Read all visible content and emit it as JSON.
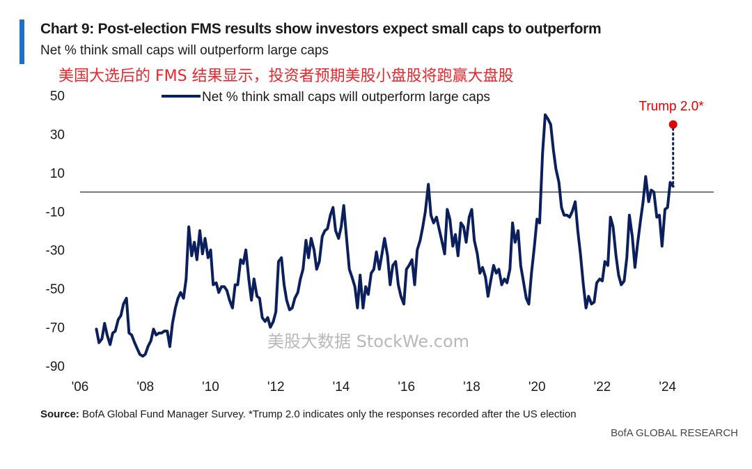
{
  "header": {
    "title": "Chart 9: Post-election FMS results show investors expect small caps to outperform",
    "subtitle": "Net % think small caps will outperform large caps",
    "cn_title": "美国大选后的 FMS 结果显示，投资者预期美股小盘股将跑赢大盘股"
  },
  "watermark": "美股大数据 StockWe.com",
  "footer": {
    "source_prefix": "Source:",
    "source_text": " BofA Global Fund Manager Survey. *Trump 2.0 indicates only the responses recorded after the US election",
    "brand": "BofA GLOBAL RESEARCH"
  },
  "colors": {
    "series": "#0b1f5c",
    "annotation": "#e00000",
    "accent_bar": "#1f6fc5",
    "zero_line": "#1a1a1a"
  },
  "chart_data": {
    "type": "line",
    "title": "Net % think small caps will outperform large caps",
    "xlabel": "",
    "ylabel": "",
    "xlim": [
      2006.0,
      2025.2
    ],
    "ylim": [
      -90,
      50
    ],
    "yticks": [
      50,
      30,
      10,
      -10,
      -30,
      -50,
      -70,
      -90
    ],
    "xticks": [
      {
        "value": 2006,
        "label": "'06"
      },
      {
        "value": 2008,
        "label": "'08"
      },
      {
        "value": 2010,
        "label": "'10"
      },
      {
        "value": 2012,
        "label": "'12"
      },
      {
        "value": 2014,
        "label": "'14"
      },
      {
        "value": 2016,
        "label": "'16"
      },
      {
        "value": 2018,
        "label": "'18"
      },
      {
        "value": 2020,
        "label": "'20"
      },
      {
        "value": 2022,
        "label": "'22"
      },
      {
        "value": 2024,
        "label": "'24"
      }
    ],
    "reference_line": 0,
    "legend_position": "top-center",
    "grid": false,
    "series": [
      {
        "name": "Net % think small caps will outperform large caps",
        "points": [
          [
            2006.5,
            -71
          ],
          [
            2006.58,
            -78
          ],
          [
            2006.67,
            -76
          ],
          [
            2006.75,
            -68
          ],
          [
            2006.83,
            -74
          ],
          [
            2006.92,
            -79
          ],
          [
            2007.0,
            -73
          ],
          [
            2007.08,
            -72
          ],
          [
            2007.17,
            -66
          ],
          [
            2007.25,
            -64
          ],
          [
            2007.33,
            -58
          ],
          [
            2007.42,
            -55
          ],
          [
            2007.5,
            -73
          ],
          [
            2007.58,
            -74
          ],
          [
            2007.67,
            -78
          ],
          [
            2007.75,
            -81
          ],
          [
            2007.83,
            -84
          ],
          [
            2007.92,
            -85
          ],
          [
            2008.0,
            -84
          ],
          [
            2008.08,
            -80
          ],
          [
            2008.17,
            -77
          ],
          [
            2008.25,
            -71
          ],
          [
            2008.33,
            -74
          ],
          [
            2008.42,
            -73
          ],
          [
            2008.5,
            -73
          ],
          [
            2008.58,
            -72
          ],
          [
            2008.67,
            -72
          ],
          [
            2008.75,
            -80
          ],
          [
            2008.83,
            -68
          ],
          [
            2008.92,
            -60
          ],
          [
            2009.0,
            -55
          ],
          [
            2009.08,
            -52
          ],
          [
            2009.17,
            -55
          ],
          [
            2009.25,
            -45
          ],
          [
            2009.33,
            -18
          ],
          [
            2009.42,
            -33
          ],
          [
            2009.5,
            -26
          ],
          [
            2009.58,
            -35
          ],
          [
            2009.67,
            -20
          ],
          [
            2009.75,
            -32
          ],
          [
            2009.83,
            -24
          ],
          [
            2009.92,
            -34
          ],
          [
            2010.0,
            -30
          ],
          [
            2010.08,
            -48
          ],
          [
            2010.17,
            -47
          ],
          [
            2010.25,
            -52
          ],
          [
            2010.33,
            -49
          ],
          [
            2010.42,
            -49
          ],
          [
            2010.5,
            -51
          ],
          [
            2010.58,
            -56
          ],
          [
            2010.67,
            -60
          ],
          [
            2010.75,
            -48
          ],
          [
            2010.83,
            -48
          ],
          [
            2010.92,
            -35
          ],
          [
            2011.0,
            -37
          ],
          [
            2011.08,
            -30
          ],
          [
            2011.17,
            -45
          ],
          [
            2011.25,
            -56
          ],
          [
            2011.33,
            -45
          ],
          [
            2011.42,
            -54
          ],
          [
            2011.5,
            -55
          ],
          [
            2011.58,
            -65
          ],
          [
            2011.67,
            -67
          ],
          [
            2011.75,
            -65
          ],
          [
            2011.83,
            -70
          ],
          [
            2011.92,
            -67
          ],
          [
            2012.0,
            -62
          ],
          [
            2012.08,
            -36
          ],
          [
            2012.17,
            -34
          ],
          [
            2012.25,
            -48
          ],
          [
            2012.33,
            -56
          ],
          [
            2012.42,
            -61
          ],
          [
            2012.5,
            -60
          ],
          [
            2012.58,
            -55
          ],
          [
            2012.67,
            -52
          ],
          [
            2012.75,
            -45
          ],
          [
            2012.83,
            -40
          ],
          [
            2012.92,
            -25
          ],
          [
            2013.0,
            -34
          ],
          [
            2013.08,
            -24
          ],
          [
            2013.17,
            -30
          ],
          [
            2013.25,
            -40
          ],
          [
            2013.33,
            -36
          ],
          [
            2013.42,
            -23
          ],
          [
            2013.5,
            -20
          ],
          [
            2013.58,
            -19
          ],
          [
            2013.67,
            -12
          ],
          [
            2013.75,
            -8
          ],
          [
            2013.83,
            -20
          ],
          [
            2013.92,
            -24
          ],
          [
            2014.0,
            -18
          ],
          [
            2014.08,
            -7
          ],
          [
            2014.17,
            -25
          ],
          [
            2014.25,
            -40
          ],
          [
            2014.33,
            -44
          ],
          [
            2014.42,
            -49
          ],
          [
            2014.5,
            -60
          ],
          [
            2014.58,
            -43
          ],
          [
            2014.67,
            -60
          ],
          [
            2014.75,
            -49
          ],
          [
            2014.83,
            -53
          ],
          [
            2014.92,
            -42
          ],
          [
            2015.0,
            -40
          ],
          [
            2015.08,
            -31
          ],
          [
            2015.17,
            -40
          ],
          [
            2015.25,
            -32
          ],
          [
            2015.33,
            -24
          ],
          [
            2015.42,
            -33
          ],
          [
            2015.5,
            -48
          ],
          [
            2015.58,
            -38
          ],
          [
            2015.67,
            -36
          ],
          [
            2015.75,
            -48
          ],
          [
            2015.83,
            -54
          ],
          [
            2015.92,
            -58
          ],
          [
            2016.0,
            -40
          ],
          [
            2016.08,
            -38
          ],
          [
            2016.17,
            -35
          ],
          [
            2016.25,
            -48
          ],
          [
            2016.33,
            -30
          ],
          [
            2016.42,
            -25
          ],
          [
            2016.5,
            -18
          ],
          [
            2016.58,
            -10
          ],
          [
            2016.67,
            4
          ],
          [
            2016.75,
            -12
          ],
          [
            2016.83,
            -16
          ],
          [
            2016.92,
            -13
          ],
          [
            2017.0,
            -19
          ],
          [
            2017.08,
            -25
          ],
          [
            2017.17,
            -32
          ],
          [
            2017.25,
            -9
          ],
          [
            2017.33,
            -14
          ],
          [
            2017.42,
            -28
          ],
          [
            2017.5,
            -22
          ],
          [
            2017.58,
            -33
          ],
          [
            2017.67,
            -16
          ],
          [
            2017.75,
            -18
          ],
          [
            2017.83,
            -26
          ],
          [
            2017.92,
            -13
          ],
          [
            2018.0,
            -9
          ],
          [
            2018.08,
            -25
          ],
          [
            2018.17,
            -32
          ],
          [
            2018.25,
            -42
          ],
          [
            2018.33,
            -39
          ],
          [
            2018.42,
            -44
          ],
          [
            2018.5,
            -54
          ],
          [
            2018.58,
            -46
          ],
          [
            2018.67,
            -38
          ],
          [
            2018.75,
            -42
          ],
          [
            2018.83,
            -40
          ],
          [
            2018.92,
            -48
          ],
          [
            2019.0,
            -45
          ],
          [
            2019.08,
            -47
          ],
          [
            2019.17,
            -40
          ],
          [
            2019.25,
            -16
          ],
          [
            2019.33,
            -26
          ],
          [
            2019.42,
            -20
          ],
          [
            2019.5,
            -38
          ],
          [
            2019.58,
            -46
          ],
          [
            2019.67,
            -55
          ],
          [
            2019.75,
            -58
          ],
          [
            2019.83,
            -42
          ],
          [
            2019.92,
            -28
          ],
          [
            2020.0,
            -14
          ],
          [
            2020.08,
            -16
          ],
          [
            2020.17,
            20
          ],
          [
            2020.25,
            40
          ],
          [
            2020.33,
            38
          ],
          [
            2020.42,
            35
          ],
          [
            2020.5,
            22
          ],
          [
            2020.58,
            12
          ],
          [
            2020.67,
            5
          ],
          [
            2020.75,
            -8
          ],
          [
            2020.83,
            -12
          ],
          [
            2020.92,
            -12
          ],
          [
            2021.0,
            -13
          ],
          [
            2021.08,
            -10
          ],
          [
            2021.17,
            -5
          ],
          [
            2021.25,
            -20
          ],
          [
            2021.33,
            -32
          ],
          [
            2021.42,
            -48
          ],
          [
            2021.5,
            -60
          ],
          [
            2021.58,
            -54
          ],
          [
            2021.67,
            -58
          ],
          [
            2021.75,
            -57
          ],
          [
            2021.83,
            -47
          ],
          [
            2021.92,
            -45
          ],
          [
            2022.0,
            -46
          ],
          [
            2022.08,
            -36
          ],
          [
            2022.17,
            -38
          ],
          [
            2022.25,
            -13
          ],
          [
            2022.33,
            -18
          ],
          [
            2022.42,
            -33
          ],
          [
            2022.5,
            -43
          ],
          [
            2022.58,
            -48
          ],
          [
            2022.67,
            -46
          ],
          [
            2022.75,
            -34
          ],
          [
            2022.83,
            -12
          ],
          [
            2022.92,
            -23
          ],
          [
            2023.0,
            -39
          ],
          [
            2023.08,
            -27
          ],
          [
            2023.17,
            -15
          ],
          [
            2023.25,
            -5
          ],
          [
            2023.33,
            8
          ],
          [
            2023.42,
            -5
          ],
          [
            2023.5,
            1
          ],
          [
            2023.58,
            0
          ],
          [
            2023.67,
            -13
          ],
          [
            2023.75,
            -12
          ],
          [
            2023.83,
            -28
          ],
          [
            2023.92,
            -9
          ],
          [
            2024.0,
            -8
          ],
          [
            2024.08,
            5
          ],
          [
            2024.17,
            3
          ]
        ]
      }
    ],
    "annotations": [
      {
        "label": "Trump 2.0*",
        "x": 2024.17,
        "y": 35
      }
    ]
  }
}
